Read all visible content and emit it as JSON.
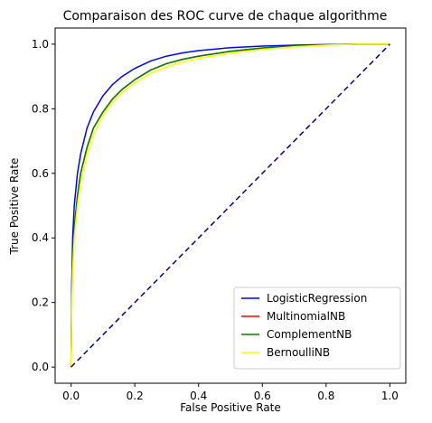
{
  "chart_data": {
    "type": "line",
    "title": "Comparaison des ROC curve de chaque algorithme",
    "xlabel": "False Positive Rate",
    "ylabel": "True Positive Rate",
    "xlim": [
      -0.05,
      1.05
    ],
    "ylim": [
      -0.05,
      1.05
    ],
    "xticks": [
      0.0,
      0.2,
      0.4,
      0.6,
      0.8,
      1.0
    ],
    "yticks": [
      0.0,
      0.2,
      0.4,
      0.6,
      0.8,
      1.0
    ],
    "xtick_labels": [
      "0.0",
      "0.2",
      "0.4",
      "0.6",
      "0.8",
      "1.0"
    ],
    "ytick_labels": [
      "0.0",
      "0.2",
      "0.4",
      "0.6",
      "0.8",
      "1.0"
    ],
    "grid": false,
    "legend_position": "lower-right",
    "series": [
      {
        "name": "LogisticRegression",
        "color": "#0000ff",
        "x": [
          0,
          0.002,
          0.005,
          0.01,
          0.02,
          0.03,
          0.05,
          0.07,
          0.1,
          0.13,
          0.16,
          0.2,
          0.25,
          0.3,
          0.35,
          0.4,
          0.5,
          0.6,
          0.7,
          0.8,
          0.9,
          1.0
        ],
        "y": [
          0,
          0.25,
          0.4,
          0.5,
          0.6,
          0.66,
          0.74,
          0.79,
          0.84,
          0.875,
          0.9,
          0.925,
          0.948,
          0.963,
          0.973,
          0.98,
          0.989,
          0.994,
          0.997,
          0.999,
          1.0,
          1.0
        ]
      },
      {
        "name": "MultinomialNB",
        "color": "#ff0000",
        "x": [
          0,
          0.002,
          0.005,
          0.01,
          0.02,
          0.03,
          0.05,
          0.07,
          0.1,
          0.13,
          0.16,
          0.2,
          0.25,
          0.3,
          0.35,
          0.4,
          0.5,
          0.6,
          0.7,
          0.8,
          0.9,
          1.0
        ],
        "y": [
          0,
          0.2,
          0.33,
          0.43,
          0.53,
          0.6,
          0.68,
          0.74,
          0.79,
          0.83,
          0.86,
          0.89,
          0.92,
          0.94,
          0.953,
          0.963,
          0.978,
          0.988,
          0.994,
          0.998,
          1.0,
          1.0
        ]
      },
      {
        "name": "ComplementNB",
        "color": "#008000",
        "x": [
          0,
          0.002,
          0.005,
          0.01,
          0.02,
          0.03,
          0.05,
          0.07,
          0.1,
          0.13,
          0.16,
          0.2,
          0.25,
          0.3,
          0.35,
          0.4,
          0.5,
          0.6,
          0.7,
          0.8,
          0.9,
          1.0
        ],
        "y": [
          0,
          0.2,
          0.33,
          0.43,
          0.53,
          0.6,
          0.68,
          0.74,
          0.79,
          0.83,
          0.86,
          0.89,
          0.92,
          0.94,
          0.953,
          0.963,
          0.978,
          0.988,
          0.994,
          0.998,
          1.0,
          1.0
        ]
      },
      {
        "name": "BernoulliNB",
        "color": "#ffff00",
        "x": [
          0,
          0.002,
          0.005,
          0.01,
          0.02,
          0.03,
          0.05,
          0.07,
          0.1,
          0.13,
          0.16,
          0.2,
          0.25,
          0.3,
          0.35,
          0.4,
          0.5,
          0.6,
          0.7,
          0.8,
          0.9,
          1.0
        ],
        "y": [
          0,
          0.17,
          0.3,
          0.4,
          0.5,
          0.57,
          0.66,
          0.72,
          0.78,
          0.82,
          0.85,
          0.88,
          0.91,
          0.93,
          0.945,
          0.956,
          0.972,
          0.984,
          0.992,
          0.997,
          1.0,
          1.0
        ]
      }
    ],
    "reference_line": {
      "x": [
        0,
        1
      ],
      "y": [
        0,
        1
      ],
      "color": "#00008b",
      "style": "dashed"
    }
  }
}
